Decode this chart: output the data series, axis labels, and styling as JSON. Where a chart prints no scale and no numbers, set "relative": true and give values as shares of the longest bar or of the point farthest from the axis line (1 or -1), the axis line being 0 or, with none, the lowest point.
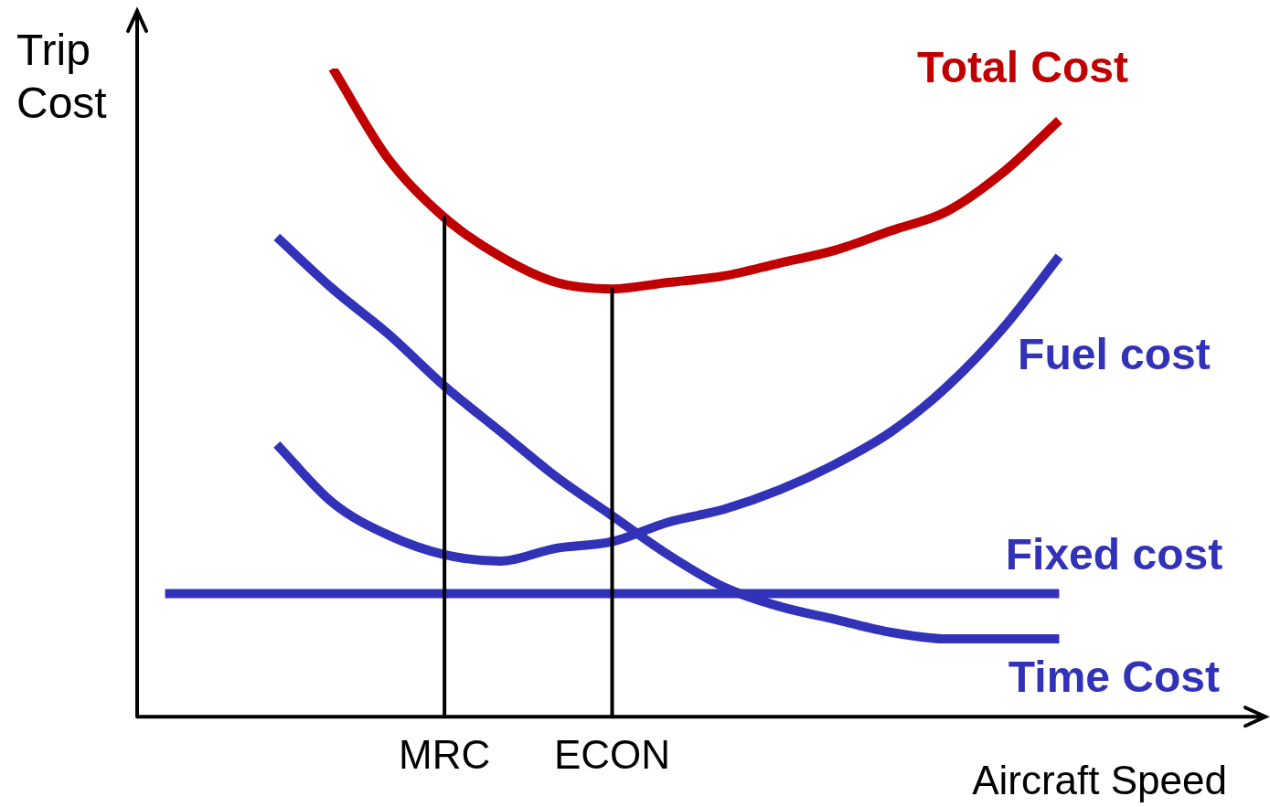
{
  "chart_data": {
    "type": "line",
    "relative": true,
    "xlabel": "Aircraft Speed",
    "ylabel": "Trip Cost",
    "categories": [
      null,
      null,
      null,
      null,
      null,
      "MRC",
      null,
      null,
      "ECON",
      null,
      null,
      null,
      null,
      null,
      null,
      null,
      null
    ],
    "series": [
      {
        "name": "Total Cost",
        "color": "#c00000",
        "values": [
          null,
          null,
          null,
          1,
          0.86,
          0.77,
          0.71,
          0.67,
          0.66,
          0.67,
          0.68,
          0.7,
          0.72,
          0.75,
          0.78,
          0.84,
          0.92
        ]
      },
      {
        "name": "Fuel cost",
        "color": "#3232b9",
        "values": [
          null,
          null,
          0.42,
          0.33,
          0.28,
          0.25,
          0.24,
          0.26,
          0.27,
          0.3,
          0.32,
          0.35,
          0.39,
          0.44,
          0.51,
          0.6,
          0.71
        ]
      },
      {
        "name": "Fixed cost",
        "color": "#3232b9",
        "values": [
          0.19,
          0.19,
          0.19,
          0.19,
          0.19,
          0.19,
          0.19,
          0.19,
          0.19,
          0.19,
          0.19,
          0.19,
          0.19,
          0.19,
          0.19,
          0.19,
          0.19
        ]
      },
      {
        "name": "Time Cost",
        "color": "#3232b9",
        "values": [
          null,
          null,
          0.74,
          0.66,
          0.59,
          0.51,
          0.44,
          0.37,
          0.31,
          0.25,
          0.2,
          0.17,
          0.15,
          0.13,
          0.12,
          0.12,
          0.12
        ]
      }
    ],
    "ref_lines": [
      {
        "axis": "x",
        "value": "MRC",
        "color": "#000000"
      },
      {
        "axis": "x",
        "value": "ECON",
        "color": "#000000"
      }
    ],
    "grid": false,
    "legend": false
  }
}
